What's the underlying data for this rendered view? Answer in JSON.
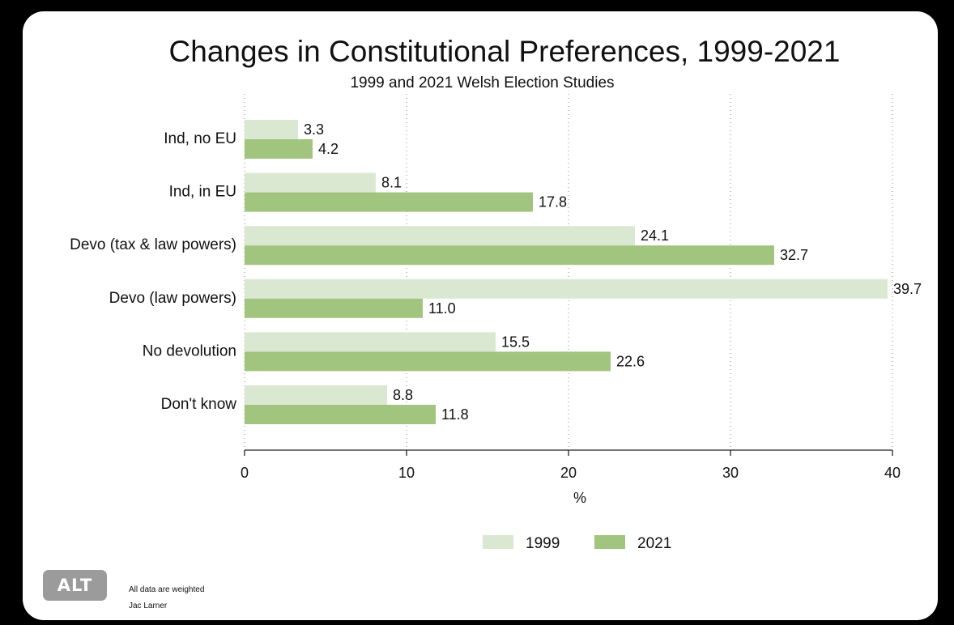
{
  "chart_data": {
    "type": "bar",
    "orientation": "horizontal",
    "title": "Changes in Constitutional Preferences, 1999-2021",
    "subtitle": "1999 and 2021 Welsh Election Studies",
    "xlabel": "%",
    "xlim": [
      0,
      40
    ],
    "xticks": [
      0,
      10,
      20,
      30,
      40
    ],
    "grid": "vertical dotted",
    "legend": "bottom",
    "categories": [
      "Ind, no EU",
      "Ind, in EU",
      "Devo (tax & law powers)",
      "Devo (law powers)",
      "No devolution",
      "Don't know"
    ],
    "series": [
      {
        "name": "1999",
        "color": "#dbe8d1",
        "values": [
          3.3,
          8.1,
          24.1,
          39.7,
          15.5,
          8.8
        ],
        "labels": [
          "3.3",
          "8.1",
          "24.1",
          "39.7",
          "15.5",
          "8.8"
        ]
      },
      {
        "name": "2021",
        "color": "#a1c47f",
        "values": [
          4.2,
          17.8,
          32.7,
          11.0,
          22.6,
          11.8
        ],
        "labels": [
          "4.2",
          "17.8",
          "32.7",
          "11.0",
          "22.6",
          "11.8"
        ]
      }
    ]
  },
  "notes": {
    "weighted": "All data are weighted",
    "author": "Jac Larner"
  },
  "alt_badge": "ALT"
}
